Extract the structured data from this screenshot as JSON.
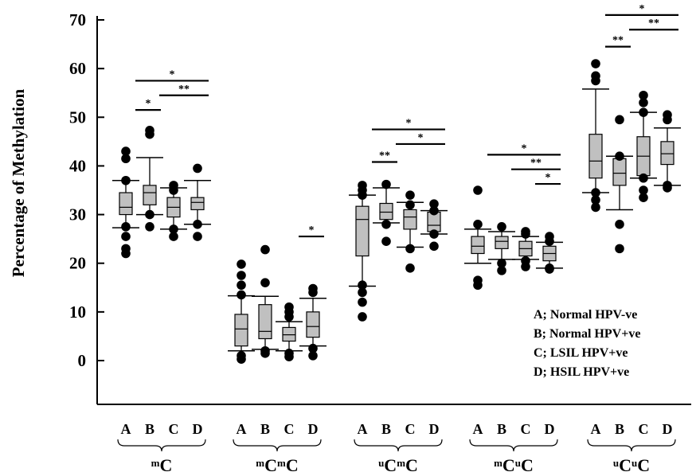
{
  "chart_data": {
    "type": "box",
    "ylabel": "Percentage of Methylation",
    "ylim": [
      0,
      70
    ],
    "yticks": [
      0,
      10,
      20,
      30,
      40,
      50,
      60,
      70
    ],
    "box_fill": "#c0c0c0",
    "categories": [
      "A",
      "B",
      "C",
      "D"
    ],
    "legend": [
      {
        "key": "A",
        "label": "A;  Normal HPV-ve"
      },
      {
        "key": "B",
        "label": "B;  Normal HPV+ve"
      },
      {
        "key": "C",
        "label": "C;  LSIL HPV+ve"
      },
      {
        "key": "D",
        "label": "D;  HSIL HPV+ve"
      }
    ],
    "legend_position": "bottom-right",
    "groups": [
      {
        "base": "C",
        "sup": "m",
        "boxes": [
          {
            "cat": "A",
            "w_low": 27.3,
            "q1": 30.0,
            "median": 31.5,
            "q3": 34.5,
            "w_high": 37.0,
            "outliers": [
              22.0,
              23.0,
              25.5,
              27.5,
              37.0,
              41.5,
              43.0
            ]
          },
          {
            "cat": "B",
            "w_low": 30.0,
            "q1": 32.0,
            "median": 34.5,
            "q3": 36.0,
            "w_high": 41.7,
            "outliers": [
              27.5,
              30.0,
              46.5,
              47.3
            ]
          },
          {
            "cat": "C",
            "w_low": 27.0,
            "q1": 29.5,
            "median": 31.5,
            "q3": 33.5,
            "w_high": 35.5,
            "outliers": [
              25.5,
              27.0,
              35.0,
              36.0
            ]
          },
          {
            "cat": "D",
            "w_low": 28.0,
            "q1": 31.0,
            "median": 32.5,
            "q3": 33.5,
            "w_high": 37.0,
            "outliers": [
              25.5,
              28.0,
              39.5
            ]
          }
        ],
        "significance": [
          {
            "from": "A",
            "to": "B",
            "label": "*",
            "y": 51.5
          },
          {
            "from": "A",
            "to": "D",
            "label": "*",
            "y": 57.5
          },
          {
            "from": "B",
            "to": "D",
            "label": "**",
            "y": 54.5
          }
        ]
      },
      {
        "base": "C",
        "sup": "m",
        "base2": "C",
        "sup2": "m",
        "boxes": [
          {
            "cat": "A",
            "w_low": 2.0,
            "q1": 3.0,
            "median": 6.5,
            "q3": 9.5,
            "w_high": 13.3,
            "outliers": [
              0.3,
              1.0,
              13.5,
              15.5,
              17.5,
              19.8
            ]
          },
          {
            "cat": "B",
            "w_low": 2.3,
            "q1": 4.5,
            "median": 6.0,
            "q3": 11.5,
            "w_high": 13.2,
            "outliers": [
              1.5,
              2.0,
              16.0,
              22.8
            ]
          },
          {
            "cat": "C",
            "w_low": 2.0,
            "q1": 4.0,
            "median": 5.3,
            "q3": 6.8,
            "w_high": 8.0,
            "outliers": [
              0.8,
              1.5,
              9.0,
              10.0,
              11.0
            ]
          },
          {
            "cat": "D",
            "w_low": 3.0,
            "q1": 4.8,
            "median": 7.0,
            "q3": 10.0,
            "w_high": 12.8,
            "outliers": [
              1.0,
              2.5,
              14.0,
              14.8
            ]
          }
        ],
        "significance": [
          {
            "from": "C",
            "to": "D",
            "label": "*",
            "y": 25.5
          }
        ]
      },
      {
        "base": "C",
        "sup": "u",
        "base2": "C",
        "sup2": "m",
        "boxes": [
          {
            "cat": "A",
            "w_low": 15.3,
            "q1": 21.5,
            "median": 29.0,
            "q3": 31.7,
            "w_high": 34.0,
            "outliers": [
              9.0,
              12.0,
              14.0,
              15.5,
              34.0,
              35.0,
              36.0
            ]
          },
          {
            "cat": "B",
            "w_low": 28.3,
            "q1": 29.0,
            "median": 30.5,
            "q3": 32.3,
            "w_high": 35.5,
            "outliers": [
              24.5,
              28.0,
              36.2
            ]
          },
          {
            "cat": "C",
            "w_low": 23.3,
            "q1": 27.0,
            "median": 29.5,
            "q3": 31.0,
            "w_high": 32.5,
            "outliers": [
              19.0,
              23.0,
              32.0,
              34.0
            ]
          },
          {
            "cat": "D",
            "w_low": 26.0,
            "q1": 26.5,
            "median": 27.8,
            "q3": 30.5,
            "w_high": 30.8,
            "outliers": [
              23.5,
              26.0,
              30.8,
              32.2
            ]
          }
        ],
        "significance": [
          {
            "from": "A",
            "to": "B",
            "label": "**",
            "y": 40.8
          },
          {
            "from": "A",
            "to": "D",
            "label": "*",
            "y": 47.5
          },
          {
            "from": "B",
            "to": "D",
            "label": "*",
            "y": 44.5
          }
        ]
      },
      {
        "base": "C",
        "sup": "m",
        "base2": "C",
        "sup2": "u",
        "boxes": [
          {
            "cat": "A",
            "w_low": 20.0,
            "q1": 22.0,
            "median": 23.5,
            "q3": 25.5,
            "w_high": 27.0,
            "outliers": [
              15.5,
              16.5,
              28.0,
              35.0
            ]
          },
          {
            "cat": "B",
            "w_low": 20.8,
            "q1": 23.0,
            "median": 24.5,
            "q3": 25.5,
            "w_high": 26.5,
            "outliers": [
              18.5,
              20.0,
              27.5
            ]
          },
          {
            "cat": "C",
            "w_low": 20.8,
            "q1": 21.5,
            "median": 23.0,
            "q3": 24.5,
            "w_high": 25.5,
            "outliers": [
              19.3,
              20.5,
              26.0,
              26.5
            ]
          },
          {
            "cat": "D",
            "w_low": 19.0,
            "q1": 20.5,
            "median": 22.0,
            "q3": 23.5,
            "w_high": 24.3,
            "outliers": [
              18.8,
              19.0,
              24.5,
              25.5
            ]
          }
        ],
        "significance": [
          {
            "from": "A",
            "to": "D",
            "label": "*",
            "y": 42.3
          },
          {
            "from": "B",
            "to": "D",
            "label": "**",
            "y": 39.3
          },
          {
            "from": "C",
            "to": "D",
            "label": "*",
            "y": 36.3
          }
        ]
      },
      {
        "base": "C",
        "sup": "u",
        "base2": "C",
        "sup2": "u",
        "boxes": [
          {
            "cat": "A",
            "w_low": 34.5,
            "q1": 37.5,
            "median": 41.0,
            "q3": 46.5,
            "w_high": 55.8,
            "outliers": [
              31.5,
              33.0,
              34.5,
              57.5,
              58.5,
              61.0
            ]
          },
          {
            "cat": "B",
            "w_low": 31.0,
            "q1": 36.0,
            "median": 38.5,
            "q3": 41.5,
            "w_high": 42.0,
            "outliers": [
              23.0,
              28.0,
              42.0,
              49.5
            ]
          },
          {
            "cat": "C",
            "w_low": 37.5,
            "q1": 38.0,
            "median": 42.0,
            "q3": 46.0,
            "w_high": 51.0,
            "outliers": [
              33.5,
              35.0,
              37.5,
              51.0,
              53.0,
              54.5
            ]
          },
          {
            "cat": "D",
            "w_low": 36.0,
            "q1": 40.3,
            "median": 42.5,
            "q3": 45.0,
            "w_high": 47.8,
            "outliers": [
              35.5,
              36.0,
              49.5,
              50.5
            ]
          }
        ],
        "significance": [
          {
            "from": "A",
            "to": "B",
            "label": "**",
            "y": 64.5
          },
          {
            "from": "A",
            "to": "D",
            "label": "*",
            "y": 71.0
          },
          {
            "from": "B",
            "to": "D",
            "label": "**",
            "y": 68.0
          }
        ]
      }
    ]
  }
}
